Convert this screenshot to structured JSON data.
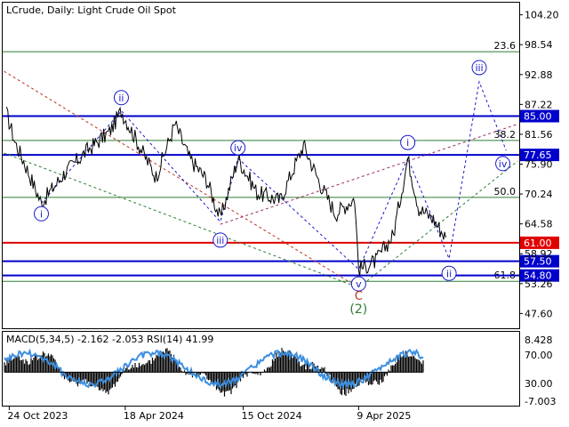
{
  "header": {
    "symbol_label": "LCrude, Daily:  Light Crude Oil Spot"
  },
  "indicator": {
    "label": "MACD(5,34,5) -2.162 -2.053 RSI(14) 41.99",
    "axis": [
      "8.428",
      "70.00",
      "30.00",
      "-7.003"
    ]
  },
  "colors": {
    "level_blue": "#0000cc",
    "level_red": "#e00000",
    "fib_green": "#2e7d32",
    "wave_blue": "#1a1acd",
    "correction_red": "#c03020",
    "correction_green": "#2e7d32",
    "price_line": "#000000",
    "rsi_line": "#3d8fe0"
  },
  "chart_data": {
    "type": "line",
    "title": "LCrude, Daily:  Light Crude Oil Spot",
    "xlabel": "",
    "ylabel": "",
    "ylim": [
      44.8,
      106.5
    ],
    "y_ticks": [
      "104.20",
      "98.54",
      "92.88",
      "87.22",
      "81.56",
      "75.90",
      "70.24",
      "64.58",
      "58.92",
      "53.26",
      "47.60"
    ],
    "x_ticks": [
      "24 Oct 2023",
      "18 Apr 2024",
      "15 Oct 2024",
      "9 Apr 2025"
    ],
    "grid": false,
    "price_series_anchor_points": [
      {
        "date": "2023-10-20",
        "close": 85.5
      },
      {
        "date": "2023-11-02",
        "close": 80.0
      },
      {
        "date": "2023-11-15",
        "close": 76.5
      },
      {
        "date": "2023-12-12",
        "close": 68.5
      },
      {
        "date": "2024-01-15",
        "close": 74.0
      },
      {
        "date": "2024-02-20",
        "close": 78.5
      },
      {
        "date": "2024-03-25",
        "close": 82.0
      },
      {
        "date": "2024-04-12",
        "close": 86.0
      },
      {
        "date": "2024-05-15",
        "close": 78.0
      },
      {
        "date": "2024-06-04",
        "close": 73.5
      },
      {
        "date": "2024-07-03",
        "close": 83.5
      },
      {
        "date": "2024-07-25",
        "close": 77.0
      },
      {
        "date": "2024-08-20",
        "close": 73.0
      },
      {
        "date": "2024-09-10",
        "close": 65.5
      },
      {
        "date": "2024-10-07",
        "close": 77.0
      },
      {
        "date": "2024-11-05",
        "close": 70.5
      },
      {
        "date": "2024-12-10",
        "close": 69.0
      },
      {
        "date": "2025-01-15",
        "close": 79.5
      },
      {
        "date": "2025-02-10",
        "close": 72.0
      },
      {
        "date": "2025-03-05",
        "close": 66.5
      },
      {
        "date": "2025-04-03",
        "close": 69.5
      },
      {
        "date": "2025-04-09",
        "close": 56.0
      },
      {
        "date": "2025-05-05",
        "close": 57.5
      },
      {
        "date": "2025-06-01",
        "close": 62.5
      },
      {
        "date": "2025-06-23",
        "close": 77.0
      },
      {
        "date": "2025-07-10",
        "close": 67.5
      },
      {
        "date": "2025-08-01",
        "close": 65.5
      },
      {
        "date": "2025-08-20",
        "close": 62.0
      }
    ],
    "horizontal_levels": [
      {
        "value": 85.0,
        "label": "85.00",
        "color": "blue"
      },
      {
        "value": 77.65,
        "label": "77.65",
        "color": "blue"
      },
      {
        "value": 61.0,
        "label": "61.00",
        "color": "red"
      },
      {
        "value": 57.5,
        "label": "57.50",
        "color": "blue"
      },
      {
        "value": 54.8,
        "label": "54.80",
        "color": "blue"
      }
    ],
    "fibonacci_levels": [
      {
        "value": 97.2,
        "label": "23.6"
      },
      {
        "value": 80.4,
        "label": "38.2"
      },
      {
        "value": 69.6,
        "label": "50.0"
      },
      {
        "value": 53.7,
        "label": "61.8"
      }
    ],
    "wave_labels": [
      {
        "label": "i",
        "date": "2023-12-12",
        "price": 66.5
      },
      {
        "label": "ii",
        "date": "2024-04-12",
        "price": 88.5
      },
      {
        "label": "iii",
        "date": "2024-09-10",
        "price": 61.5
      },
      {
        "label": "iv",
        "date": "2024-10-07",
        "price": 79.0
      },
      {
        "label": "v",
        "date": "2025-04-09",
        "price": 53.2
      },
      {
        "label": "C",
        "date": "2025-04-09",
        "price": 50.9
      },
      {
        "label": "(2)",
        "date": "2025-04-09",
        "price": 48.5
      },
      {
        "label": "i",
        "date": "2025-06-23",
        "price": 80.0
      },
      {
        "label": "ii",
        "date": "2025-08-25",
        "price": 55.2
      },
      {
        "label": "iii",
        "date": "2025-10-10",
        "price": 94.2
      },
      {
        "label": "iv",
        "date": "2025-11-15",
        "price": 76.0
      }
    ],
    "macd_rsi": {
      "macd_main": -2.162,
      "macd_signal": -2.053,
      "rsi": 41.99,
      "axis_ticks": [
        "8.428",
        "70.00",
        "30.00",
        "-7.003"
      ]
    }
  }
}
